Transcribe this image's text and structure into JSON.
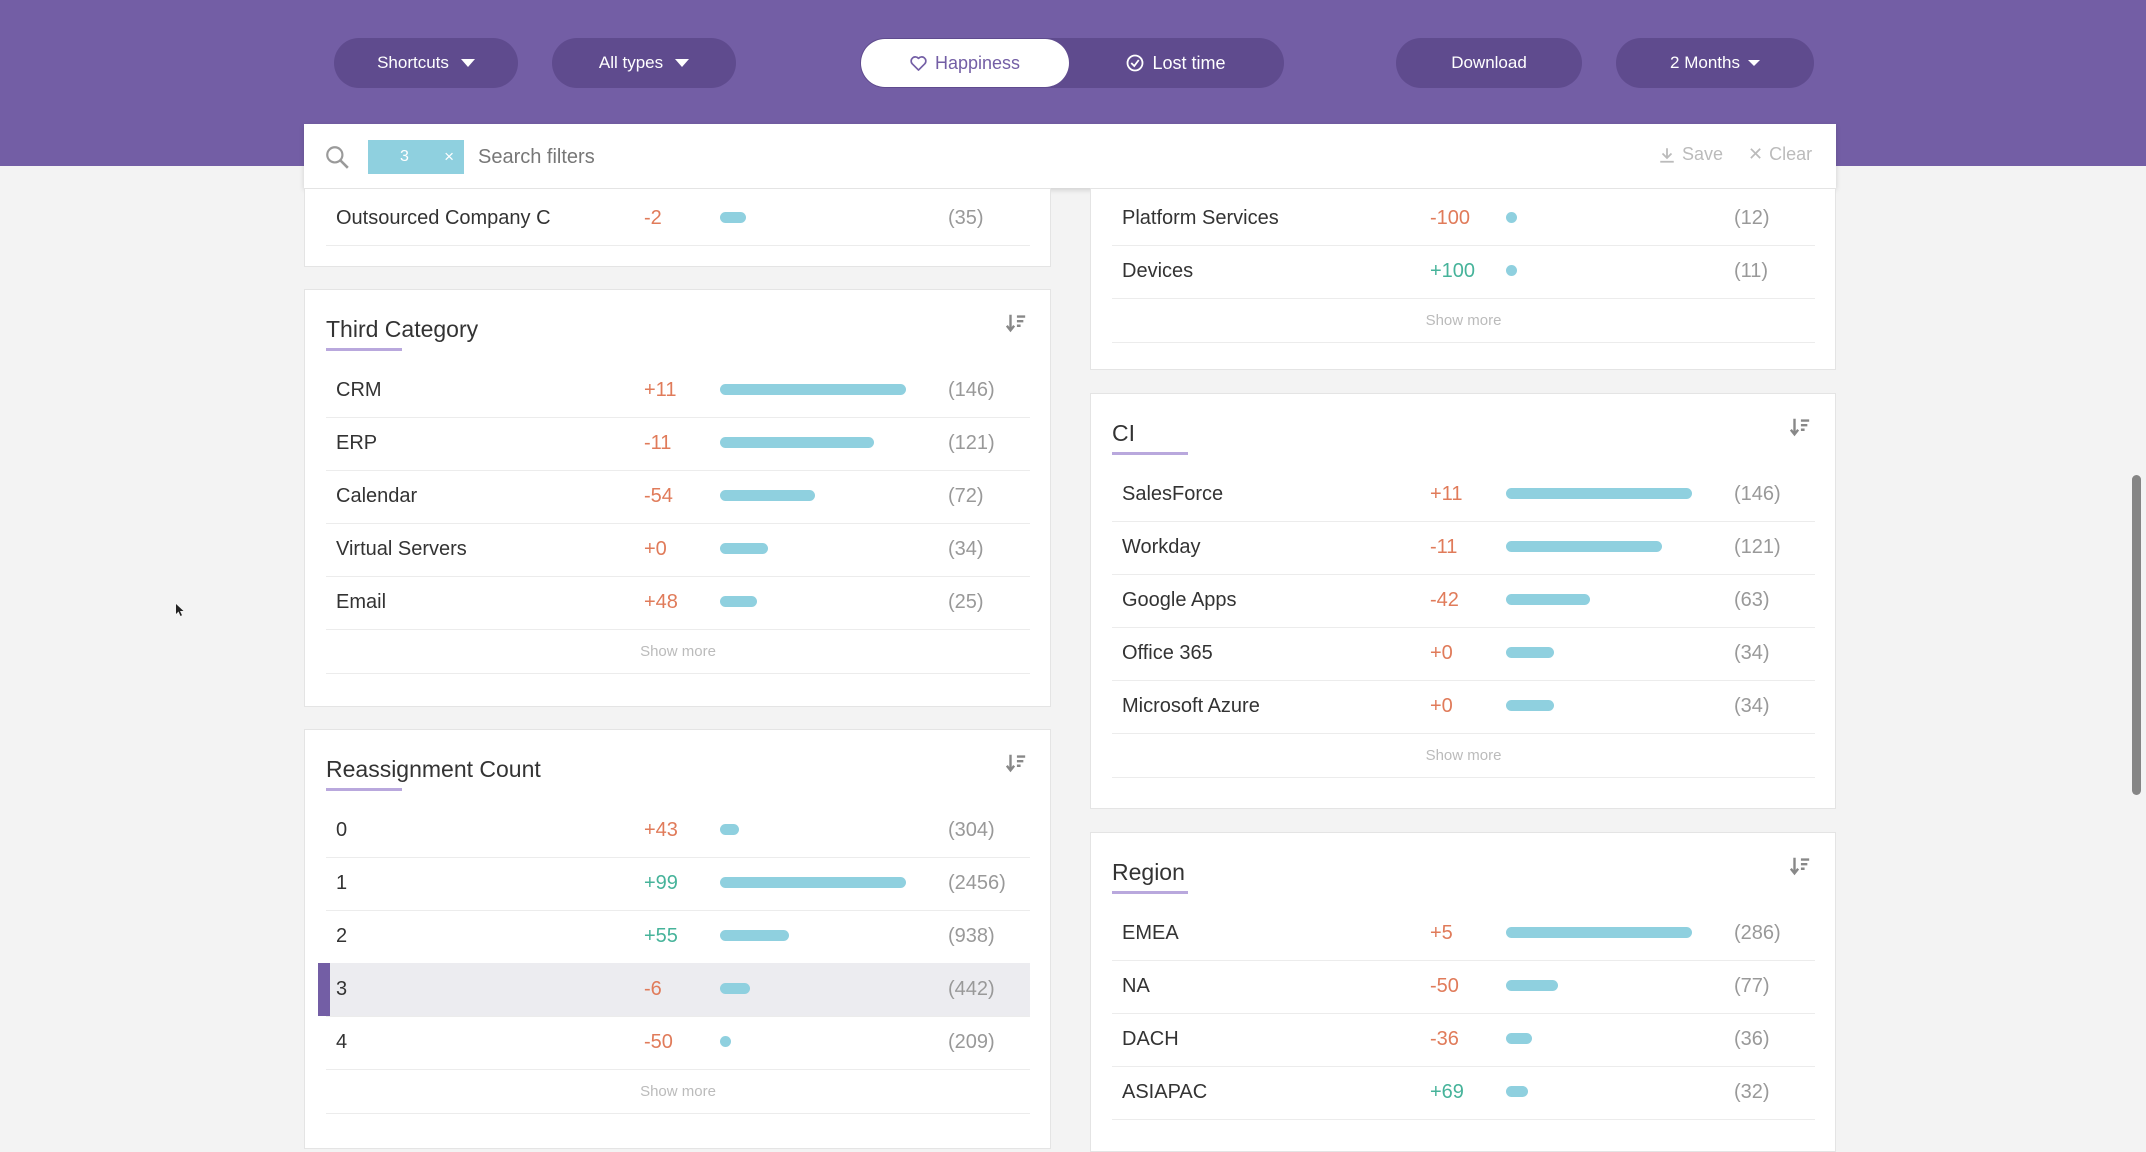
{
  "toolbar": {
    "shortcuts_label": "Shortcuts",
    "all_types_label": "All types",
    "happiness_label": "Happiness",
    "lost_time_label": "Lost time",
    "download_label": "Download",
    "period_label": "2 Months"
  },
  "search": {
    "chip_value": "3",
    "placeholder": "Search filters",
    "save_label": "Save",
    "clear_label": "Clear"
  },
  "colors": {
    "header": "#735ea5",
    "bar": "#8fd0df",
    "negative": "#e07b5a",
    "positive": "#46b39a",
    "selected_accent": "#735ea5"
  },
  "cards": {
    "top_left": {
      "rows": [
        {
          "label": "Outsourced Company C",
          "delta": "-2",
          "count": "(35)",
          "level": 0.14
        }
      ]
    },
    "third_category": {
      "title": "Third Category",
      "rows": [
        {
          "label": "CRM",
          "delta": "+11",
          "count": "(146)",
          "level": 1.0
        },
        {
          "label": "ERP",
          "delta": "-11",
          "count": "(121)",
          "level": 0.83
        },
        {
          "label": "Calendar",
          "delta": "-54",
          "count": "(72)",
          "level": 0.51
        },
        {
          "label": "Virtual Servers",
          "delta": "+0",
          "count": "(34)",
          "level": 0.26
        },
        {
          "label": "Email",
          "delta": "+48",
          "count": "(25)",
          "level": 0.2
        }
      ],
      "show_more": "Show more"
    },
    "reassignment_count": {
      "title": "Reassignment Count",
      "rows": [
        {
          "label": "0",
          "delta": "+43",
          "count": "(304)",
          "level": 0.1
        },
        {
          "label": "1",
          "delta": "+99",
          "count": "(2456)",
          "level": 1.0
        },
        {
          "label": "2",
          "delta": "+55",
          "count": "(938)",
          "level": 0.37
        },
        {
          "label": "3",
          "delta": "-6",
          "count": "(442)",
          "level": 0.16,
          "selected": true
        },
        {
          "label": "4",
          "delta": "-50",
          "count": "(209)",
          "level": 0.06
        }
      ],
      "show_more": "Show more"
    },
    "top_right": {
      "rows": [
        {
          "label": "Platform Services",
          "delta": "-100",
          "count": "(12)",
          "level": 0.06
        },
        {
          "label": "Devices",
          "delta": "+100",
          "count": "(11)",
          "level": 0.06
        }
      ],
      "show_more": "Show more"
    },
    "ci": {
      "title": "CI",
      "rows": [
        {
          "label": "SalesForce",
          "delta": "+11",
          "count": "(146)",
          "level": 1.0
        },
        {
          "label": "Workday",
          "delta": "-11",
          "count": "(121)",
          "level": 0.84
        },
        {
          "label": "Google Apps",
          "delta": "-42",
          "count": "(63)",
          "level": 0.45
        },
        {
          "label": "Office 365",
          "delta": "+0",
          "count": "(34)",
          "level": 0.26
        },
        {
          "label": "Microsoft Azure",
          "delta": "+0",
          "count": "(34)",
          "level": 0.26
        }
      ],
      "show_more": "Show more"
    },
    "region": {
      "title": "Region",
      "rows": [
        {
          "label": "EMEA",
          "delta": "+5",
          "count": "(286)",
          "level": 1.0
        },
        {
          "label": "NA",
          "delta": "-50",
          "count": "(77)",
          "level": 0.28
        },
        {
          "label": "DACH",
          "delta": "-36",
          "count": "(36)",
          "level": 0.14
        },
        {
          "label": "ASIAPAC",
          "delta": "+69",
          "count": "(32)",
          "level": 0.12
        }
      ]
    }
  }
}
